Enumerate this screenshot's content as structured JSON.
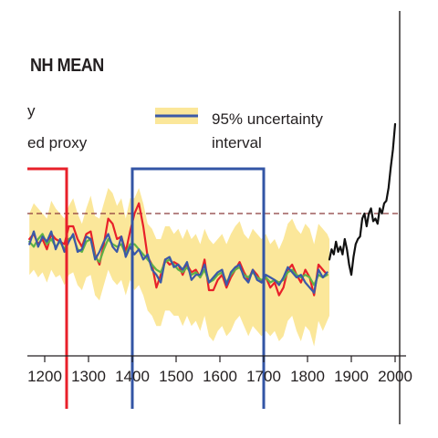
{
  "chart_data": {
    "type": "line",
    "title": "NH MEAN",
    "legend": {
      "partial_lines": [
        "y",
        "ed proxy"
      ],
      "uncertainty_label_line1": "95% uncertainty",
      "uncertainty_label_line2": "interval",
      "uncertainty_color": "#fbe79a",
      "uncertainty_swatch_color": "#3b59a8"
    },
    "x_axis": {
      "ticks": [
        "1200",
        "1300",
        "1400",
        "1500",
        "1600",
        "1700",
        "1800",
        "1900",
        "2000"
      ],
      "range": [
        1165,
        2005
      ]
    },
    "reference_line": {
      "style": "dashed",
      "color": "#8b3a3a"
    },
    "highlight_periods": [
      {
        "color": "#e8202a",
        "start": 1150,
        "end": 1250
      },
      {
        "color": "#3355a5",
        "start": 1400,
        "end": 1700
      }
    ],
    "series": [
      {
        "color": "#e8202a",
        "x": [
          1165,
          1175,
          1185,
          1195,
          1205,
          1215,
          1225,
          1235,
          1245,
          1255,
          1265,
          1275,
          1285,
          1295,
          1305,
          1315,
          1325,
          1335,
          1345,
          1355,
          1365,
          1375,
          1385,
          1395,
          1405,
          1415,
          1425,
          1435,
          1445,
          1455,
          1465,
          1475,
          1485,
          1495,
          1505,
          1515,
          1525,
          1535,
          1545,
          1555,
          1565,
          1575,
          1585,
          1595,
          1605,
          1615,
          1625,
          1635,
          1645,
          1655,
          1665,
          1675,
          1685,
          1695,
          1705,
          1715,
          1725,
          1735,
          1745,
          1755,
          1765,
          1775,
          1785,
          1795,
          1805,
          1815,
          1825,
          1835,
          1845
        ],
        "y": [
          0.5,
          0.52,
          0.48,
          0.5,
          0.46,
          0.52,
          0.5,
          0.49,
          0.48,
          0.55,
          0.55,
          0.5,
          0.47,
          0.52,
          0.53,
          0.44,
          0.4,
          0.48,
          0.58,
          0.56,
          0.5,
          0.51,
          0.45,
          0.53,
          0.6,
          0.64,
          0.55,
          0.43,
          0.4,
          0.31,
          0.36,
          0.42,
          0.4,
          0.41,
          0.4,
          0.36,
          0.4,
          0.37,
          0.38,
          0.35,
          0.42,
          0.3,
          0.3,
          0.34,
          0.36,
          0.31,
          0.35,
          0.38,
          0.41,
          0.37,
          0.34,
          0.38,
          0.36,
          0.33,
          0.35,
          0.31,
          0.33,
          0.28,
          0.31,
          0.38,
          0.4,
          0.36,
          0.33,
          0.38,
          0.35,
          0.28,
          0.4,
          0.38,
          0.36
        ]
      },
      {
        "color": "#5fb247",
        "x": [
          1165,
          1175,
          1185,
          1195,
          1205,
          1215,
          1225,
          1235,
          1245,
          1255,
          1265,
          1275,
          1285,
          1295,
          1305,
          1315,
          1325,
          1335,
          1345,
          1355,
          1365,
          1375,
          1385,
          1395,
          1405,
          1415,
          1425,
          1435,
          1445,
          1455,
          1465,
          1475,
          1485,
          1495,
          1505,
          1515,
          1525,
          1535,
          1545,
          1555,
          1565,
          1575,
          1585,
          1595,
          1605,
          1615,
          1625,
          1635,
          1645,
          1655,
          1665,
          1675,
          1685,
          1695,
          1705,
          1715,
          1725,
          1735,
          1745,
          1755,
          1765,
          1775,
          1785,
          1795,
          1805,
          1815,
          1825,
          1835,
          1845
        ],
        "y": [
          0.49,
          0.47,
          0.5,
          0.52,
          0.48,
          0.5,
          0.47,
          0.49,
          0.46,
          0.5,
          0.51,
          0.46,
          0.45,
          0.49,
          0.5,
          0.43,
          0.41,
          0.46,
          0.5,
          0.48,
          0.47,
          0.48,
          0.44,
          0.48,
          0.48,
          0.46,
          0.44,
          0.42,
          0.4,
          0.38,
          0.37,
          0.41,
          0.42,
          0.4,
          0.38,
          0.37,
          0.39,
          0.36,
          0.37,
          0.35,
          0.38,
          0.33,
          0.34,
          0.36,
          0.37,
          0.33,
          0.36,
          0.38,
          0.39,
          0.36,
          0.35,
          0.37,
          0.35,
          0.34,
          0.35,
          0.33,
          0.34,
          0.33,
          0.34,
          0.37,
          0.38,
          0.36,
          0.35,
          0.36,
          0.35,
          0.32,
          0.36,
          0.35,
          0.36
        ]
      },
      {
        "color": "#3b59a8",
        "x": [
          1165,
          1175,
          1185,
          1195,
          1205,
          1215,
          1225,
          1235,
          1245,
          1255,
          1265,
          1275,
          1285,
          1295,
          1305,
          1315,
          1325,
          1335,
          1345,
          1355,
          1365,
          1375,
          1385,
          1395,
          1405,
          1415,
          1425,
          1435,
          1445,
          1455,
          1465,
          1475,
          1485,
          1495,
          1505,
          1515,
          1525,
          1535,
          1545,
          1555,
          1565,
          1575,
          1585,
          1595,
          1605,
          1615,
          1625,
          1635,
          1645,
          1655,
          1665,
          1675,
          1685,
          1695,
          1705,
          1715,
          1725,
          1735,
          1745,
          1755,
          1765,
          1775,
          1785,
          1795,
          1805,
          1815,
          1825,
          1835,
          1845
        ],
        "y": [
          0.48,
          0.53,
          0.47,
          0.51,
          0.49,
          0.53,
          0.46,
          0.5,
          0.45,
          0.49,
          0.52,
          0.45,
          0.46,
          0.51,
          0.5,
          0.42,
          0.45,
          0.49,
          0.52,
          0.47,
          0.45,
          0.51,
          0.43,
          0.47,
          0.44,
          0.46,
          0.42,
          0.44,
          0.38,
          0.36,
          0.33,
          0.42,
          0.43,
          0.39,
          0.4,
          0.38,
          0.41,
          0.34,
          0.36,
          0.36,
          0.4,
          0.33,
          0.35,
          0.37,
          0.38,
          0.32,
          0.37,
          0.39,
          0.4,
          0.35,
          0.33,
          0.38,
          0.34,
          0.33,
          0.36,
          0.35,
          0.34,
          0.32,
          0.35,
          0.39,
          0.37,
          0.35,
          0.36,
          0.33,
          0.31,
          0.29,
          0.38,
          0.35,
          0.37
        ]
      },
      {
        "color": "#111111",
        "x": [
          1850,
          1855,
          1860,
          1865,
          1870,
          1875,
          1880,
          1885,
          1890,
          1895,
          1900,
          1905,
          1910,
          1915,
          1920,
          1925,
          1930,
          1935,
          1940,
          1945,
          1950,
          1955,
          1960,
          1965,
          1970,
          1975,
          1980,
          1985,
          1990,
          1995,
          2000
        ],
        "y": [
          0.42,
          0.46,
          0.44,
          0.49,
          0.45,
          0.47,
          0.44,
          0.5,
          0.46,
          0.4,
          0.36,
          0.43,
          0.48,
          0.5,
          0.51,
          0.58,
          0.6,
          0.55,
          0.6,
          0.62,
          0.57,
          0.58,
          0.56,
          0.62,
          0.6,
          0.64,
          0.65,
          0.7,
          0.78,
          0.85,
          0.95
        ]
      }
    ],
    "uncertainty_band": {
      "x": [
        1165,
        1175,
        1185,
        1195,
        1205,
        1215,
        1225,
        1235,
        1245,
        1255,
        1265,
        1275,
        1285,
        1295,
        1305,
        1315,
        1325,
        1335,
        1345,
        1355,
        1365,
        1375,
        1385,
        1395,
        1405,
        1415,
        1425,
        1435,
        1445,
        1455,
        1465,
        1475,
        1485,
        1495,
        1505,
        1515,
        1525,
        1535,
        1545,
        1555,
        1565,
        1575,
        1585,
        1595,
        1605,
        1615,
        1625,
        1635,
        1645,
        1655,
        1665,
        1675,
        1685,
        1695,
        1705,
        1715,
        1725,
        1735,
        1745,
        1755,
        1765,
        1775,
        1785,
        1795,
        1805,
        1815,
        1825,
        1835,
        1845,
        1850
      ],
      "upper": [
        0.6,
        0.64,
        0.62,
        0.6,
        0.58,
        0.65,
        0.62,
        0.6,
        0.58,
        0.63,
        0.66,
        0.6,
        0.56,
        0.62,
        0.67,
        0.59,
        0.58,
        0.64,
        0.7,
        0.68,
        0.63,
        0.66,
        0.58,
        0.66,
        0.66,
        0.7,
        0.64,
        0.56,
        0.54,
        0.5,
        0.5,
        0.55,
        0.55,
        0.52,
        0.54,
        0.5,
        0.54,
        0.5,
        0.52,
        0.48,
        0.54,
        0.5,
        0.48,
        0.5,
        0.52,
        0.48,
        0.52,
        0.55,
        0.57,
        0.52,
        0.5,
        0.54,
        0.52,
        0.5,
        0.52,
        0.48,
        0.5,
        0.46,
        0.5,
        0.56,
        0.58,
        0.54,
        0.52,
        0.56,
        0.54,
        0.48,
        0.56,
        0.54,
        0.52,
        0.5
      ],
      "lower": [
        0.36,
        0.38,
        0.35,
        0.37,
        0.33,
        0.38,
        0.35,
        0.36,
        0.32,
        0.36,
        0.37,
        0.32,
        0.3,
        0.35,
        0.36,
        0.28,
        0.26,
        0.32,
        0.38,
        0.34,
        0.32,
        0.34,
        0.28,
        0.34,
        0.3,
        0.32,
        0.28,
        0.22,
        0.2,
        0.16,
        0.16,
        0.22,
        0.22,
        0.2,
        0.2,
        0.16,
        0.2,
        0.16,
        0.18,
        0.14,
        0.2,
        0.12,
        0.1,
        0.14,
        0.16,
        0.12,
        0.14,
        0.18,
        0.2,
        0.16,
        0.12,
        0.16,
        0.14,
        0.12,
        0.14,
        0.12,
        0.14,
        0.1,
        0.12,
        0.18,
        0.2,
        0.14,
        0.1,
        0.16,
        0.14,
        0.08,
        0.18,
        0.14,
        0.18,
        0.2
      ]
    }
  }
}
